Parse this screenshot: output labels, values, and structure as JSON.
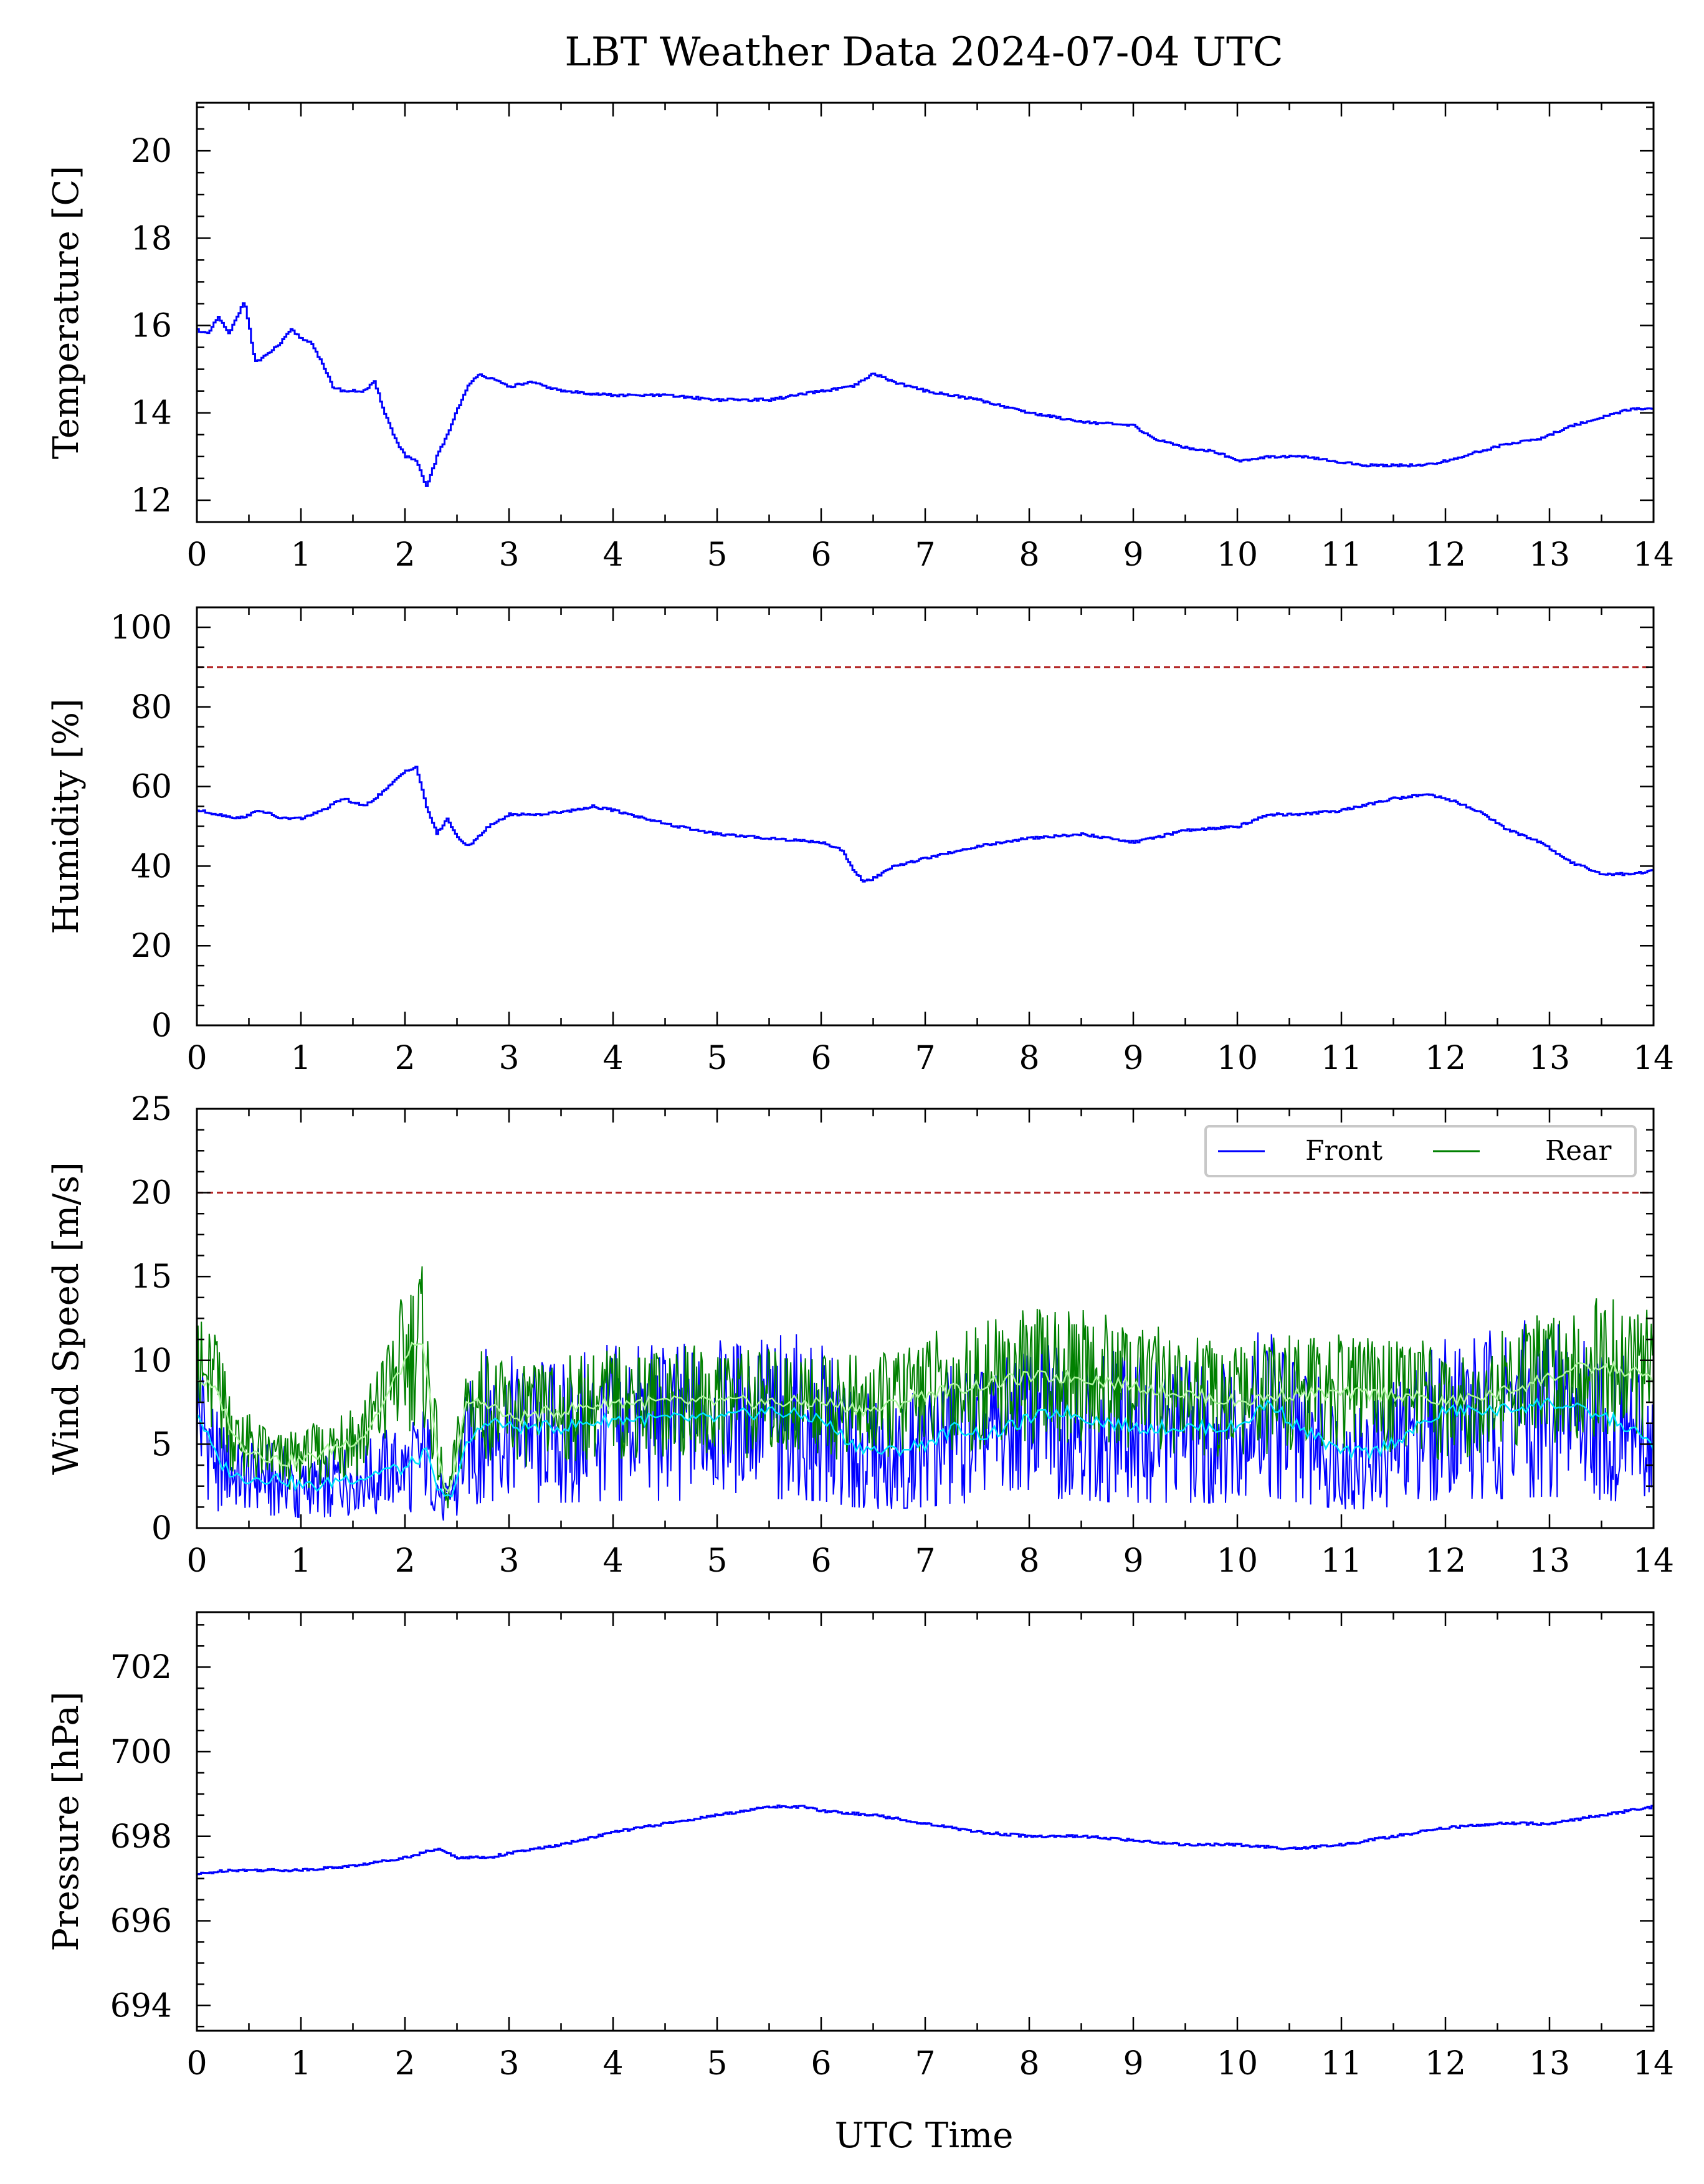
{
  "figure": {
    "title": "LBT Weather Data 2024-07-04 UTC",
    "xlabel": "UTC Time"
  },
  "chart_data": [
    {
      "type": "line",
      "ylabel": "Temperature [C]",
      "xlim": [
        0,
        14
      ],
      "ylim": [
        11.5,
        21.1
      ],
      "xticks": [
        0,
        1,
        2,
        3,
        4,
        5,
        6,
        7,
        8,
        9,
        10,
        11,
        12,
        13,
        14
      ],
      "yticks": [
        12,
        14,
        16,
        18,
        20
      ],
      "grid": false,
      "series": [
        {
          "color": "#0000ff",
          "x": [
            0,
            0.1,
            0.2,
            0.3,
            0.4,
            0.45,
            0.5,
            0.55,
            0.6,
            0.7,
            0.8,
            0.9,
            1.0,
            1.1,
            1.2,
            1.3,
            1.4,
            1.6,
            1.7,
            1.8,
            1.9,
            2.0,
            2.1,
            2.2,
            2.3,
            2.4,
            2.5,
            2.6,
            2.7,
            2.8,
            3.0,
            3.2,
            3.5,
            4.0,
            4.5,
            5.0,
            5.5,
            6.0,
            6.3,
            6.5,
            6.7,
            7.0,
            7.5,
            8.0,
            8.5,
            9.0,
            9.2,
            9.5,
            9.8,
            10.0,
            10.3,
            10.6,
            10.9,
            11.2,
            11.5,
            11.8,
            12.0,
            12.3,
            12.6,
            12.9,
            13.2,
            13.5,
            13.8,
            14.0
          ],
          "y": [
            15.9,
            15.8,
            16.2,
            15.8,
            16.3,
            16.6,
            15.9,
            15.2,
            15.2,
            15.4,
            15.6,
            15.9,
            15.7,
            15.6,
            15.1,
            14.6,
            14.5,
            14.5,
            14.7,
            14.0,
            13.4,
            13.0,
            12.9,
            12.3,
            13.0,
            13.5,
            14.1,
            14.6,
            14.9,
            14.8,
            14.6,
            14.7,
            14.5,
            14.4,
            14.4,
            14.3,
            14.3,
            14.5,
            14.6,
            14.9,
            14.7,
            14.5,
            14.3,
            14.0,
            13.8,
            13.7,
            13.4,
            13.2,
            13.1,
            12.9,
            13.0,
            13.0,
            12.9,
            12.8,
            12.8,
            12.8,
            12.9,
            13.1,
            13.3,
            13.4,
            13.7,
            13.9,
            14.1,
            14.1
          ]
        }
      ]
    },
    {
      "type": "line",
      "ylabel": "Humidity [%]",
      "xlim": [
        0,
        14
      ],
      "ylim": [
        0,
        105
      ],
      "xticks": [
        0,
        1,
        2,
        3,
        4,
        5,
        6,
        7,
        8,
        9,
        10,
        11,
        12,
        13,
        14
      ],
      "yticks": [
        0,
        20,
        40,
        60,
        80,
        100
      ],
      "grid": false,
      "threshold": 90,
      "threshold_color": "#b22222",
      "series": [
        {
          "color": "#0000ff",
          "x": [
            0,
            0.2,
            0.4,
            0.6,
            0.8,
            1.0,
            1.2,
            1.4,
            1.6,
            1.8,
            2.0,
            2.1,
            2.2,
            2.3,
            2.4,
            2.5,
            2.6,
            2.8,
            3.0,
            3.3,
            3.6,
            3.8,
            4.0,
            4.3,
            4.6,
            5.0,
            5.5,
            6.0,
            6.2,
            6.3,
            6.4,
            6.5,
            6.7,
            7.0,
            7.5,
            8.0,
            8.5,
            9.0,
            9.5,
            10.0,
            10.3,
            10.6,
            11.0,
            11.5,
            11.8,
            12.0,
            12.3,
            12.6,
            12.9,
            13.2,
            13.5,
            13.8,
            14.0
          ],
          "y": [
            54,
            53,
            52,
            54,
            52,
            52,
            54,
            57,
            55,
            59,
            64,
            65,
            55,
            48,
            52,
            47,
            45,
            50,
            53,
            53,
            54,
            55,
            54,
            52,
            50,
            48,
            47,
            46,
            44,
            39,
            36,
            37,
            40,
            42,
            45,
            47,
            48,
            46,
            49,
            50,
            53,
            53,
            54,
            57,
            58,
            57,
            54,
            49,
            46,
            41,
            38,
            38,
            39
          ]
        }
      ]
    },
    {
      "type": "line",
      "ylabel": "Wind Speed [m/s]",
      "xlim": [
        0,
        14
      ],
      "ylim": [
        0,
        25
      ],
      "xticks": [
        0,
        1,
        2,
        3,
        4,
        5,
        6,
        7,
        8,
        9,
        10,
        11,
        12,
        13,
        14
      ],
      "yticks": [
        0,
        5,
        10,
        15,
        20,
        25
      ],
      "grid": false,
      "threshold": 20,
      "threshold_color": "#b22222",
      "legend": "top-right",
      "series": [
        {
          "name": "Front",
          "color": "#0000ff",
          "smooth_color": "#00e5ff",
          "x": [
            0,
            0.2,
            0.4,
            0.6,
            0.8,
            1.0,
            1.2,
            1.4,
            1.6,
            1.8,
            2.0,
            2.2,
            2.3,
            2.4,
            2.5,
            2.6,
            2.8,
            3.0,
            3.5,
            4.0,
            4.5,
            5.0,
            5.5,
            6.0,
            6.3,
            6.6,
            7.0,
            7.3,
            7.6,
            8.0,
            8.3,
            8.6,
            9.0,
            9.5,
            10.0,
            10.3,
            10.6,
            11.0,
            11.3,
            11.6,
            12.0,
            12.5,
            13.0,
            13.3,
            13.6,
            14.0
          ],
          "y": [
            7,
            4,
            3,
            3,
            3,
            2.5,
            2.5,
            3,
            3,
            3.5,
            3.5,
            4.5,
            2.5,
            1.5,
            3,
            5,
            6.5,
            6,
            6,
            6.5,
            6.5,
            6.5,
            7,
            6.5,
            5,
            4.5,
            5,
            6,
            5.5,
            6.5,
            7,
            6.5,
            6,
            6,
            6,
            7.5,
            6,
            4.5,
            4.5,
            5.5,
            7,
            7,
            7.5,
            7,
            6.5,
            5
          ]
        },
        {
          "name": "Rear",
          "color": "#008000",
          "smooth_color": "#aef5a0",
          "x": [
            0,
            0.2,
            0.4,
            0.6,
            0.8,
            1.0,
            1.2,
            1.4,
            1.6,
            1.8,
            2.0,
            2.15,
            2.3,
            2.4,
            2.5,
            2.6,
            2.8,
            3.0,
            3.5,
            4.0,
            4.5,
            5.0,
            5.5,
            6.0,
            6.5,
            7.0,
            7.5,
            8.0,
            8.5,
            9.0,
            9.5,
            10.0,
            10.5,
            11.0,
            11.5,
            12.0,
            12.5,
            13.0,
            13.3,
            13.6,
            14.0
          ],
          "y": [
            9,
            8,
            5,
            4.5,
            4,
            4,
            4.5,
            5,
            5.5,
            7.5,
            10,
            11.5,
            5,
            1.5,
            4.5,
            7.5,
            7.5,
            6.5,
            7,
            7.5,
            7.5,
            7.5,
            7.5,
            7.5,
            7,
            8,
            8.5,
            9,
            9,
            8.5,
            8,
            7.5,
            8,
            8,
            8,
            7.5,
            8,
            9,
            9.5,
            9.5,
            9
          ]
        }
      ]
    },
    {
      "type": "line",
      "ylabel": "Pressure [hPa]",
      "xlim": [
        0,
        14
      ],
      "ylim": [
        693.4,
        703.3
      ],
      "xticks": [
        0,
        1,
        2,
        3,
        4,
        5,
        6,
        7,
        8,
        9,
        10,
        11,
        12,
        13,
        14
      ],
      "yticks": [
        694,
        696,
        698,
        700,
        702
      ],
      "grid": false,
      "series": [
        {
          "color": "#0000ff",
          "x": [
            0,
            0.3,
            0.6,
            1.0,
            1.5,
            2.0,
            2.3,
            2.5,
            2.8,
            3.0,
            3.5,
            4.0,
            4.5,
            5.0,
            5.5,
            5.8,
            6.0,
            6.5,
            7.0,
            7.5,
            8.0,
            8.5,
            9.0,
            9.5,
            10.0,
            10.5,
            11.0,
            11.5,
            12.0,
            12.5,
            13.0,
            13.5,
            14.0
          ],
          "y": [
            697.1,
            697.2,
            697.2,
            697.2,
            697.3,
            697.5,
            697.7,
            697.5,
            697.5,
            697.6,
            697.8,
            698.1,
            698.3,
            698.5,
            698.7,
            698.7,
            698.6,
            698.5,
            698.3,
            698.1,
            698.0,
            698.0,
            697.9,
            697.8,
            697.8,
            697.7,
            697.8,
            698.0,
            698.2,
            698.3,
            698.3,
            698.5,
            698.7
          ]
        }
      ]
    }
  ]
}
